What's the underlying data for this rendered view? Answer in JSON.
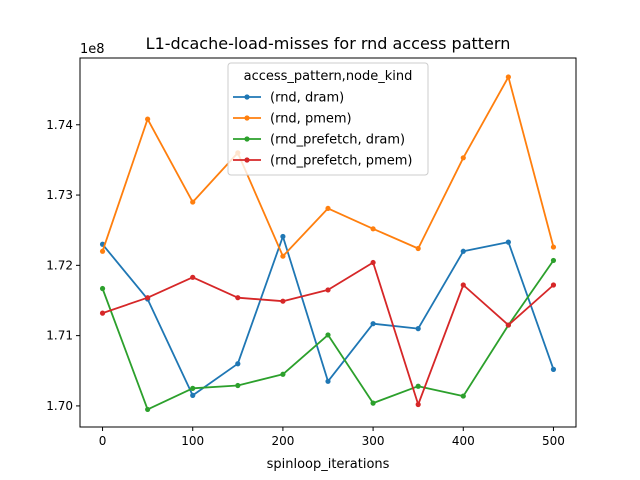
{
  "chart_data": {
    "type": "line",
    "title": "L1-dcache-load-misses for rnd access pattern",
    "xlabel": "spinloop_iterations",
    "ylabel": "",
    "y_offset_label": "1e8",
    "x_ticks": [
      0,
      100,
      200,
      300,
      400,
      500
    ],
    "y_ticks": [
      1.7,
      1.71,
      1.72,
      1.73,
      1.74
    ],
    "y_tick_labels": [
      "1.70",
      "1.71",
      "1.72",
      "1.73",
      "1.74"
    ],
    "xlim": [
      -25,
      525
    ],
    "ylim": [
      1.697,
      1.7495
    ],
    "legend_title": "access_pattern,node_kind",
    "legend_position": "upper center",
    "grid": false,
    "x": [
      0,
      50,
      100,
      150,
      200,
      250,
      300,
      350,
      400,
      450,
      500
    ],
    "series": [
      {
        "name": "(rnd, dram)",
        "color": "#1f77b4",
        "values": [
          1.723,
          1.7152,
          1.7015,
          1.706,
          1.7241,
          1.7035,
          1.7117,
          1.711,
          1.722,
          1.7233,
          1.7052
        ]
      },
      {
        "name": "(rnd, pmem)",
        "color": "#ff7f0e",
        "values": [
          1.722,
          1.7408,
          1.729,
          1.736,
          1.7213,
          1.7281,
          1.7252,
          1.7224,
          1.7353,
          1.7468,
          1.7226
        ]
      },
      {
        "name": "(rnd_prefetch, dram)",
        "color": "#2ca02c",
        "values": [
          1.7167,
          1.6995,
          1.7025,
          1.7029,
          1.7045,
          1.7101,
          1.7004,
          1.7028,
          1.7014,
          1.7115,
          1.7207
        ]
      },
      {
        "name": "(rnd_prefetch, pmem)",
        "color": "#d62728",
        "values": [
          1.7132,
          1.7154,
          1.7183,
          1.7154,
          1.7149,
          1.7165,
          1.7204,
          1.7002,
          1.7172,
          1.7115,
          1.7172
        ]
      }
    ]
  }
}
